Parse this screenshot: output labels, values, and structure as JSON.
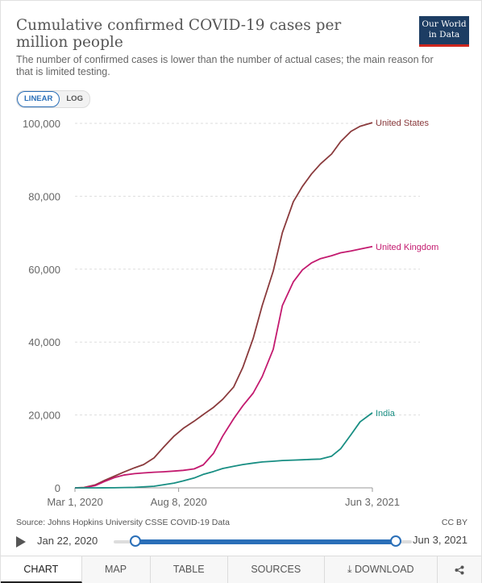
{
  "header": {
    "title": "Cumulative confirmed COVID-19 cases per million people",
    "subtitle": "The number of confirmed cases is lower than the number of actual cases; the main reason for that is limited testing.",
    "logo_line1": "Our World",
    "logo_line2": "in Data"
  },
  "scale_toggle": {
    "linear_label": "LINEAR",
    "log_label": "LOG",
    "selected": "LINEAR"
  },
  "chart_data": {
    "type": "line",
    "ylim": [
      0,
      100000
    ],
    "yticks": [
      0,
      20000,
      40000,
      60000,
      80000,
      100000
    ],
    "ytick_labels": [
      "0",
      "20,000",
      "40,000",
      "60,000",
      "80,000",
      "100,000"
    ],
    "x_range": [
      "2020-03-01",
      "2021-06-03"
    ],
    "xtick_labels": [
      "Mar 1, 2020",
      "Aug 8, 2020",
      "Jun 3, 2021"
    ],
    "xticks": [
      "2020-03-01",
      "2020-08-08",
      "2021-06-03"
    ],
    "grid": "horizontal",
    "legend": "line-end labels",
    "series": [
      {
        "name": "United States",
        "color": "#8a3a3c",
        "x": [
          "2020-03-01",
          "2020-03-15",
          "2020-04-01",
          "2020-04-15",
          "2020-05-01",
          "2020-05-15",
          "2020-06-01",
          "2020-06-15",
          "2020-07-01",
          "2020-07-15",
          "2020-08-01",
          "2020-08-15",
          "2020-09-01",
          "2020-09-15",
          "2020-10-01",
          "2020-10-15",
          "2020-11-01",
          "2020-11-15",
          "2020-12-01",
          "2020-12-15",
          "2021-01-01",
          "2021-01-15",
          "2021-02-01",
          "2021-02-15",
          "2021-03-01",
          "2021-03-15",
          "2021-04-01",
          "2021-04-15",
          "2021-05-01",
          "2021-05-15",
          "2021-06-03"
        ],
        "y": [
          0,
          100,
          800,
          2000,
          3200,
          4300,
          5500,
          6400,
          8200,
          11000,
          14200,
          16300,
          18300,
          20100,
          22100,
          24300,
          27700,
          33000,
          41000,
          50000,
          59500,
          70000,
          78500,
          82700,
          86100,
          88900,
          91600,
          95000,
          97800,
          99200,
          100200
        ]
      },
      {
        "name": "United Kingdom",
        "color": "#c31a6f",
        "x": [
          "2020-03-01",
          "2020-03-15",
          "2020-04-01",
          "2020-04-15",
          "2020-05-01",
          "2020-05-15",
          "2020-06-01",
          "2020-06-15",
          "2020-07-01",
          "2020-07-15",
          "2020-08-01",
          "2020-08-15",
          "2020-09-01",
          "2020-09-15",
          "2020-10-01",
          "2020-10-15",
          "2020-11-01",
          "2020-11-15",
          "2020-12-01",
          "2020-12-15",
          "2021-01-01",
          "2021-01-15",
          "2021-02-01",
          "2021-02-15",
          "2021-03-01",
          "2021-03-15",
          "2021-04-01",
          "2021-04-15",
          "2021-05-01",
          "2021-05-15",
          "2021-06-03"
        ],
        "y": [
          0,
          30,
          600,
          1700,
          2800,
          3500,
          3900,
          4100,
          4300,
          4400,
          4600,
          4800,
          5200,
          6300,
          9500,
          14200,
          19000,
          22500,
          26000,
          30500,
          38000,
          50000,
          56500,
          59800,
          61700,
          62900,
          63700,
          64500,
          65000,
          65500,
          66200
        ]
      },
      {
        "name": "India",
        "color": "#188e83",
        "x": [
          "2020-03-01",
          "2020-04-01",
          "2020-05-01",
          "2020-06-01",
          "2020-07-01",
          "2020-08-01",
          "2020-08-15",
          "2020-09-01",
          "2020-09-15",
          "2020-10-01",
          "2020-10-15",
          "2020-11-01",
          "2020-11-15",
          "2020-12-01",
          "2020-12-15",
          "2021-01-01",
          "2021-01-15",
          "2021-02-01",
          "2021-02-15",
          "2021-03-01",
          "2021-03-15",
          "2021-04-01",
          "2021-04-15",
          "2021-05-01",
          "2021-05-15",
          "2021-06-03"
        ],
        "y": [
          0,
          1,
          30,
          140,
          450,
          1300,
          1900,
          2700,
          3700,
          4500,
          5300,
          5900,
          6400,
          6800,
          7100,
          7300,
          7500,
          7600,
          7700,
          7800,
          7900,
          8700,
          10700,
          14600,
          18100,
          20600
        ]
      }
    ]
  },
  "footer": {
    "source": "Source: Johns Hopkins University CSSE COVID-19 Data",
    "license": "CC BY"
  },
  "timeline": {
    "start_label": "Jan 22, 2020",
    "end_label": "Jun 3, 2021"
  },
  "tabs": [
    {
      "label": "CHART",
      "active": true
    },
    {
      "label": "MAP"
    },
    {
      "label": "TABLE"
    },
    {
      "label": "SOURCES"
    },
    {
      "label": "DOWNLOAD",
      "icon": "download-icon"
    },
    {
      "label": "",
      "icon": "share-icon"
    }
  ]
}
